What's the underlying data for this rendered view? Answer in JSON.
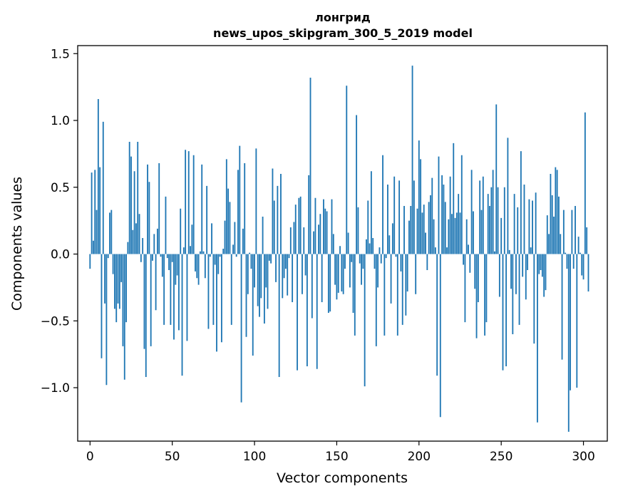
{
  "chart_data": {
    "type": "bar",
    "title": "лонгрид",
    "subtitle": "news_upos_skipgram_300_5_2019 model",
    "xlabel": "Vector components",
    "ylabel": "Components values",
    "xlim": [
      -7.5,
      314.5
    ],
    "ylim": [
      -1.4,
      1.56
    ],
    "xticks": [
      0,
      50,
      100,
      150,
      200,
      250,
      300
    ],
    "yticks": [
      -1.0,
      -0.5,
      0.0,
      0.5,
      1.0,
      1.5
    ],
    "ytick_labels": [
      "−1.0",
      "−0.5",
      "0.0",
      "0.5",
      "1.0",
      "1.5"
    ],
    "grid": false,
    "bar_color": "#1f77b4",
    "series": [
      {
        "values": [
          -0.11,
          0.61,
          0.1,
          0.63,
          0.33,
          1.16,
          0.65,
          -0.78,
          0.99,
          -0.37,
          -0.98,
          -0.03,
          0.31,
          0.33,
          -0.15,
          -0.41,
          -0.51,
          -0.37,
          -0.41,
          -0.21,
          -0.69,
          -0.94,
          -0.51,
          0.09,
          0.84,
          0.73,
          0.18,
          0.62,
          0.23,
          0.84,
          0.3,
          -0.06,
          0.12,
          -0.71,
          -0.92,
          0.67,
          0.54,
          -0.69,
          -0.05,
          0.15,
          -0.42,
          0.19,
          0.68,
          -0.02,
          -0.17,
          -0.53,
          0.43,
          -0.03,
          -0.12,
          -0.53,
          -0.06,
          -0.64,
          -0.23,
          -0.16,
          -0.57,
          0.34,
          -0.91,
          0.05,
          0.78,
          -0.65,
          0.77,
          0.06,
          0.22,
          0.74,
          -0.13,
          -0.18,
          -0.23,
          0.02,
          0.67,
          0.02,
          -0.18,
          0.51,
          -0.56,
          -0.02,
          0.23,
          -0.53,
          -0.08,
          -0.73,
          -0.15,
          -0.02,
          -0.66,
          0.04,
          0.25,
          0.71,
          0.49,
          0.39,
          -0.53,
          0.07,
          0.24,
          -0.02,
          0.63,
          0.81,
          -1.11,
          0.19,
          0.68,
          -0.62,
          -0.3,
          0.01,
          -0.11,
          -0.76,
          -0.25,
          0.79,
          -0.39,
          -0.47,
          -0.33,
          0.28,
          -0.52,
          -0.25,
          -0.41,
          -0.05,
          -0.07,
          0.64,
          0.4,
          -0.21,
          0.51,
          -0.92,
          0.6,
          -0.33,
          -0.18,
          -0.11,
          -0.31,
          -0.03,
          0.2,
          -0.36,
          0.24,
          0.37,
          -0.87,
          0.42,
          0.43,
          -0.3,
          0.2,
          -0.16,
          -0.84,
          0.59,
          1.32,
          -0.48,
          0.17,
          0.42,
          -0.86,
          0.22,
          0.3,
          -0.36,
          0.41,
          0.34,
          0.32,
          -0.44,
          -0.43,
          0.41,
          0.15,
          -0.23,
          -0.34,
          -0.29,
          0.06,
          -0.28,
          -0.3,
          -0.11,
          1.26,
          0.16,
          -0.25,
          -0.06,
          -0.44,
          -0.61,
          1.04,
          0.35,
          -0.07,
          -0.23,
          -0.11,
          -0.99,
          0.11,
          0.4,
          0.08,
          0.62,
          0.12,
          -0.11,
          -0.69,
          -0.25,
          0.05,
          -0.07,
          0.74,
          -0.61,
          -0.03,
          0.52,
          0.14,
          -0.37,
          0.23,
          0.58,
          -0.02,
          -0.61,
          0.55,
          -0.13,
          -0.53,
          0.36,
          -0.46,
          -0.28,
          0.25,
          0.36,
          1.41,
          0.55,
          -0.3,
          0.34,
          0.85,
          0.71,
          0.31,
          0.37,
          0.16,
          -0.12,
          0.39,
          0.44,
          0.57,
          0.26,
          0.05,
          -0.91,
          0.73,
          -1.22,
          0.59,
          0.52,
          0.39,
          0.05,
          0.26,
          0.58,
          0.3,
          0.83,
          0.27,
          0.31,
          0.45,
          0.31,
          0.74,
          -0.08,
          -0.51,
          0.26,
          0.07,
          -0.14,
          0.63,
          0.32,
          -0.26,
          -0.63,
          -0.36,
          0.55,
          0.33,
          0.58,
          -0.61,
          -0.51,
          0.45,
          0.36,
          0.5,
          0.63,
          0.02,
          1.12,
          0.5,
          -0.32,
          0.27,
          -0.87,
          0.5,
          -0.84,
          0.87,
          0.03,
          -0.26,
          -0.6,
          0.45,
          -0.3,
          0.35,
          -0.53,
          0.77,
          -0.17,
          0.52,
          -0.34,
          -0.12,
          0.41,
          0.05,
          0.4,
          -0.67,
          0.46,
          -1.26,
          -0.15,
          -0.12,
          -0.17,
          -0.32,
          -0.27,
          0.29,
          0.15,
          0.6,
          0.44,
          0.28,
          0.65,
          0.63,
          0.43,
          0.15,
          -0.79,
          0.33,
          0.01,
          -0.11,
          -1.33,
          -1.02,
          0.33,
          -0.11,
          0.36,
          -1.0,
          0.13,
          0.01,
          -0.16,
          -0.19,
          1.06,
          0.2,
          -0.28
        ]
      }
    ]
  }
}
